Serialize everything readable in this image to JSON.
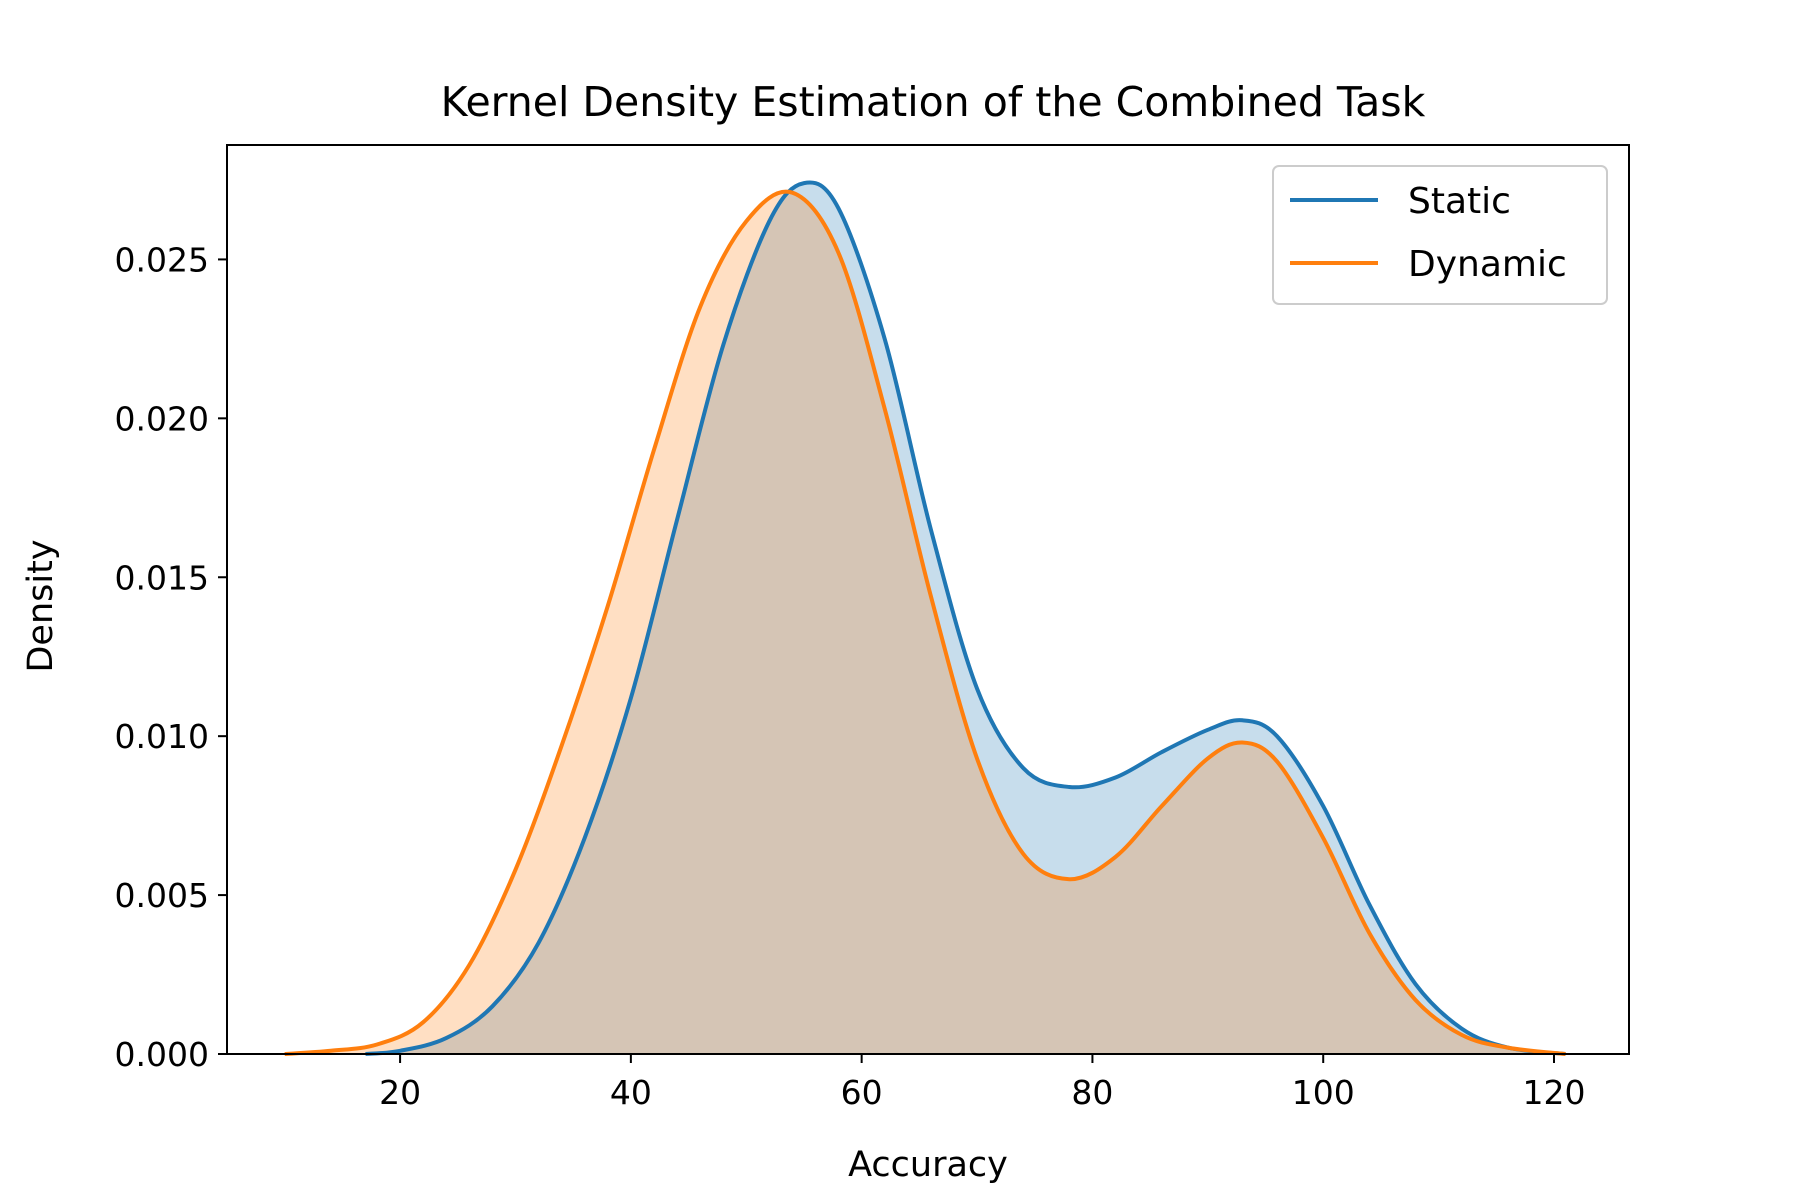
{
  "chart_data": {
    "type": "area",
    "title": "Kernel Density Estimation of the Combined Task",
    "xlabel": "Accuracy",
    "ylabel": "Density",
    "xlim": [
      5,
      126.5
    ],
    "ylim": [
      0,
      0.0286
    ],
    "xticks": [
      20,
      40,
      60,
      80,
      100,
      120
    ],
    "yticks": [
      0.0,
      0.005,
      0.01,
      0.015,
      0.02,
      0.025
    ],
    "ytick_labels": [
      "0.000",
      "0.005",
      "0.010",
      "0.015",
      "0.020",
      "0.025"
    ],
    "grid": false,
    "legend": {
      "position": "top-right",
      "entries": [
        "Static",
        "Dynamic"
      ]
    },
    "series": [
      {
        "name": "Static",
        "color": "#1f77b4",
        "x": [
          17,
          20,
          24,
          28,
          32,
          36,
          40,
          44,
          48,
          52,
          55,
          58,
          62,
          66,
          70,
          74,
          78,
          82,
          86,
          90,
          93,
          96,
          100,
          104,
          108,
          112,
          116,
          121
        ],
        "y": [
          0.0,
          0.0001,
          0.0005,
          0.0015,
          0.0035,
          0.0068,
          0.0112,
          0.0168,
          0.0223,
          0.0262,
          0.0274,
          0.0266,
          0.0225,
          0.0165,
          0.0115,
          0.009,
          0.0084,
          0.0087,
          0.0095,
          0.0102,
          0.0105,
          0.01,
          0.0078,
          0.0047,
          0.0022,
          0.0008,
          0.0002,
          0.0
        ]
      },
      {
        "name": "Dynamic",
        "color": "#ff7f0e",
        "x": [
          10,
          14,
          18,
          22,
          26,
          30,
          34,
          38,
          42,
          46,
          50,
          54,
          58,
          62,
          66,
          70,
          74,
          78,
          82,
          86,
          90,
          93,
          96,
          100,
          104,
          108,
          112,
          116,
          121
        ],
        "y": [
          0.0,
          0.0001,
          0.0003,
          0.001,
          0.0028,
          0.0058,
          0.0097,
          0.0141,
          0.019,
          0.0235,
          0.0262,
          0.0271,
          0.0252,
          0.0203,
          0.0144,
          0.0093,
          0.0063,
          0.0055,
          0.0062,
          0.0078,
          0.0093,
          0.0098,
          0.0092,
          0.0068,
          0.0038,
          0.0017,
          0.0006,
          0.0002,
          0.0
        ]
      }
    ]
  }
}
